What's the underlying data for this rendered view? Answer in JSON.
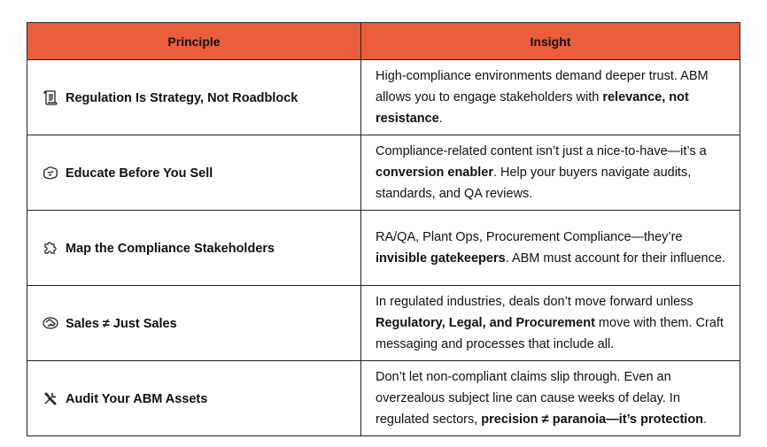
{
  "header": {
    "principle": "Principle",
    "insight": "Insight",
    "color": "#EB5E3C"
  },
  "rows": [
    {
      "icon": "scroll-icon",
      "principle": "Regulation Is Strategy, Not Roadblock",
      "insight": [
        {
          "t": "High-compliance environments demand deeper trust. ABM allows you to engage stakeholders with ",
          "b": false
        },
        {
          "t": "relevance, not resistance",
          "b": true
        },
        {
          "t": ".",
          "b": false
        }
      ]
    },
    {
      "icon": "brain-icon",
      "principle": "Educate Before You Sell",
      "insight": [
        {
          "t": "Compliance-related content isn’t just a nice-to-have—it’s a ",
          "b": false
        },
        {
          "t": "conversion enabler",
          "b": true
        },
        {
          "t": ". Help your buyers navigate audits, standards, and QA reviews.",
          "b": false
        }
      ]
    },
    {
      "icon": "puzzle-icon",
      "principle": "Map the Compliance Stakeholders",
      "insight": [
        {
          "t": "RA/QA, Plant Ops, Procurement Compliance—they’re ",
          "b": false
        },
        {
          "t": "invisible gatekeepers",
          "b": true
        },
        {
          "t": ". ABM must account for their influence.",
          "b": false
        }
      ]
    },
    {
      "icon": "handshake-icon",
      "principle": "Sales ≠ Just Sales",
      "insight": [
        {
          "t": "In regulated industries, deals don’t move forward unless ",
          "b": false
        },
        {
          "t": "Regulatory, Legal, and Procurement",
          "b": true
        },
        {
          "t": " move with them. Craft messaging and processes that include all.",
          "b": false
        }
      ]
    },
    {
      "icon": "tools-icon",
      "principle": "Audit Your ABM Assets",
      "insight": [
        {
          "t": "Don’t let non-compliant claims slip through. Even an overzealous subject line can cause weeks of delay. In regulated sectors, ",
          "b": false
        },
        {
          "t": "precision ≠ paranoia—it’s protection",
          "b": true
        },
        {
          "t": ".",
          "b": false
        }
      ]
    }
  ]
}
